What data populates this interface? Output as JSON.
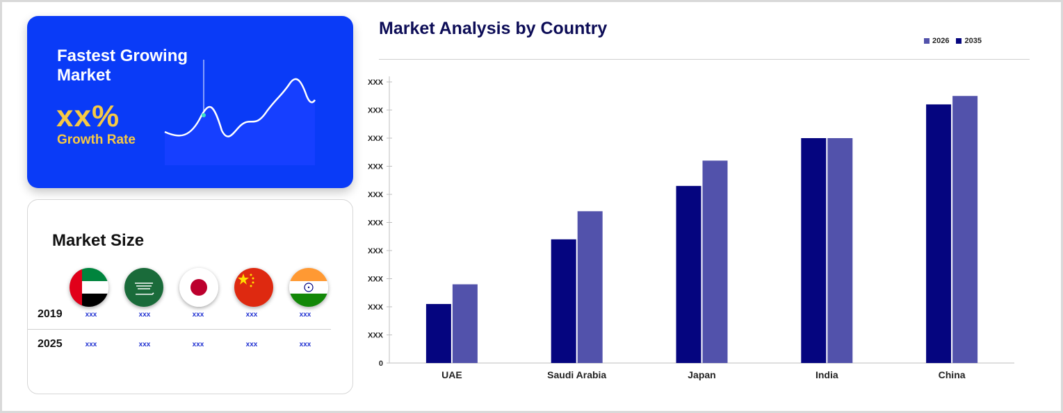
{
  "growth_card": {
    "title": "Fastest Growing Market",
    "value": "xx%",
    "subtitle": "Growth Rate"
  },
  "market_size": {
    "title": "Market Size",
    "countries": [
      "UAE",
      "Saudi Arabia",
      "Japan",
      "China",
      "India"
    ],
    "rows": [
      {
        "year": "2019",
        "values": [
          "xxx",
          "xxx",
          "xxx",
          "xxx",
          "xxx"
        ]
      },
      {
        "year": "2025",
        "values": [
          "xxx",
          "xxx",
          "xxx",
          "xxx",
          "xxx"
        ]
      }
    ]
  },
  "chart_data": {
    "type": "bar",
    "title": "Market Analysis by Country",
    "categories": [
      "UAE",
      "Saudi Arabia",
      "Japan",
      "India",
      "China"
    ],
    "series": [
      {
        "name": "2026",
        "values": [
          2.8,
          5.4,
          7.2,
          8.0,
          9.5
        ]
      },
      {
        "name": "2035",
        "values": [
          2.1,
          4.4,
          6.3,
          8.0,
          9.2
        ]
      }
    ],
    "ylim": [
      0,
      10
    ],
    "ytick_labels": [
      "0",
      "XXX",
      "XXX",
      "XXX",
      "XXX",
      "XXX",
      "XXX",
      "XXX",
      "XXX",
      "XXX",
      "XXX"
    ],
    "legend_position": "top-right",
    "colors": {
      "2026": "#5252ab",
      "2035": "#05057f"
    }
  }
}
